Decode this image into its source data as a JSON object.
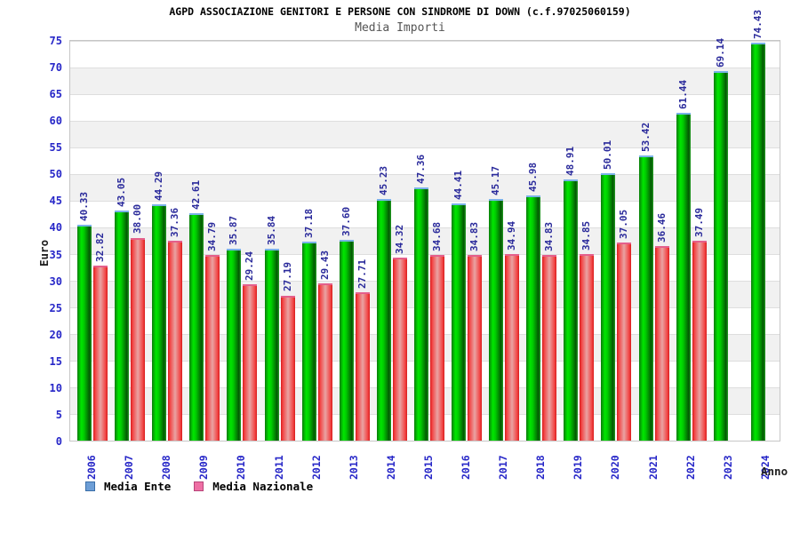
{
  "header": {
    "title": "AGPD ASSOCIAZIONE GENITORI E PERSONE CON SINDROME DI DOWN (c.f.97025060159)",
    "subtitle": "Media Importi"
  },
  "colors": {
    "ente_bar": "#00c000",
    "ente_bar_cap": "#7ab2e8",
    "nazionale_bar": "#e84040",
    "nazionale_bar_cap": "#e45f8b",
    "legend_ente_swatch": "#6d9ed6",
    "legend_nazionale_swatch": "#ee6fa4",
    "tick_text": "#2727c8",
    "value_text": "#2a2a9b",
    "band_gray": "#f1f1f1"
  },
  "chart_data": {
    "type": "bar",
    "title": "AGPD ASSOCIAZIONE GENITORI E PERSONE CON SINDROME DI DOWN (c.f.97025060159)",
    "subtitle": "Media Importi",
    "xlabel": "Anno",
    "ylabel": "Euro",
    "ylim": [
      0,
      75
    ],
    "ytick_step": 5,
    "grid": "horizontal-bands-alternating",
    "legend_position": "bottom-left",
    "categories": [
      "2006",
      "2007",
      "2008",
      "2009",
      "2010",
      "2011",
      "2012",
      "2013",
      "2014",
      "2015",
      "2016",
      "2017",
      "2018",
      "2019",
      "2020",
      "2021",
      "2022",
      "2023",
      "2024"
    ],
    "series": [
      {
        "name": "Media Ente",
        "values": [
          40.33,
          43.05,
          44.29,
          42.61,
          35.87,
          35.84,
          37.18,
          37.6,
          45.23,
          47.36,
          44.41,
          45.17,
          45.98,
          48.91,
          50.01,
          53.42,
          61.44,
          69.14,
          74.43
        ]
      },
      {
        "name": "Media Nazionale",
        "values": [
          32.82,
          38.0,
          37.36,
          34.79,
          29.24,
          27.19,
          29.43,
          27.71,
          34.32,
          34.68,
          34.83,
          34.94,
          34.83,
          34.85,
          37.05,
          36.46,
          37.49,
          null,
          null
        ]
      }
    ]
  }
}
